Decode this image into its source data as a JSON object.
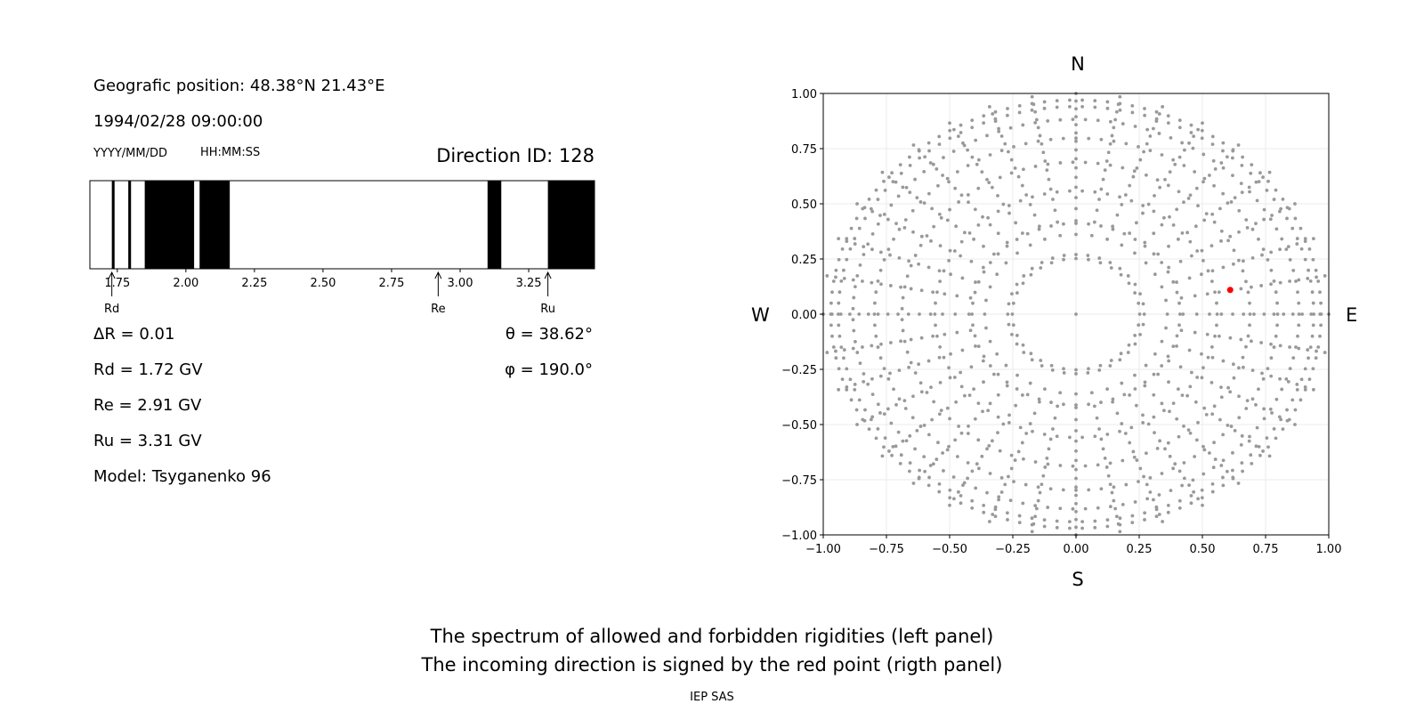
{
  "left_panel": {
    "position_label": "Geografic position: 48.38°N 21.43°E",
    "datetime": "1994/02/28 09:00:00",
    "date_format": "YYYY/MM/DD",
    "time_format": "HH:MM:SS",
    "direction_label": "Direction ID: 128",
    "delta_r": "ΔR = 0.01",
    "rd": "Rd = 1.72 GV",
    "re": "Re = 2.91 GV",
    "ru": "Ru = 3.31 GV",
    "model": "Model: Tsyganenko 96",
    "theta": "θ = 38.62°",
    "phi": "φ = 190.0°"
  },
  "right_panel": {
    "north": "N",
    "south": "S",
    "west": "W",
    "east": "E"
  },
  "captions": {
    "line1": "The spectrum of allowed and forbidden rigidities (left panel)",
    "line2": "The incoming direction is signed by the red point (rigth panel)",
    "credit": "IEP SAS"
  },
  "chart_data": [
    {
      "type": "bar",
      "name": "rigidity-spectrum",
      "xlim": [
        1.65,
        3.49
      ],
      "ticks": [
        1.75,
        2.0,
        2.25,
        2.5,
        2.75,
        3.0,
        3.25
      ],
      "tick_labels": [
        "1.75",
        "2.00",
        "2.25",
        "2.50",
        "2.75",
        "3.00",
        "3.25"
      ],
      "forbidden_bands": [
        [
          1.73,
          1.74
        ],
        [
          1.79,
          1.8
        ],
        [
          1.85,
          2.03
        ],
        [
          2.05,
          2.16
        ],
        [
          3.1,
          3.15
        ],
        [
          3.32,
          3.49
        ]
      ],
      "markers": [
        {
          "label": "Rd",
          "value": 1.73
        },
        {
          "label": "Re",
          "value": 2.92
        },
        {
          "label": "Ru",
          "value": 3.32
        }
      ],
      "band_color": "#000000"
    },
    {
      "type": "scatter",
      "name": "direction-grid",
      "xlim": [
        -1.0,
        1.0
      ],
      "ylim": [
        -1.0,
        1.0
      ],
      "ticks": [
        -1.0,
        -0.75,
        -0.5,
        -0.25,
        0.0,
        0.25,
        0.5,
        0.75,
        1.0
      ],
      "tick_labels": [
        "−1.00",
        "−0.75",
        "−0.50",
        "−0.25",
        "0.00",
        "0.25",
        "0.50",
        "0.75",
        "1.00"
      ],
      "grid": true,
      "grid_pattern": {
        "spokes": 36,
        "spoke_step_deg": 10,
        "rings_deg": [
          15,
          25,
          35,
          45,
          55,
          65,
          75,
          85
        ],
        "max_spoke_radius": 1.0
      },
      "grid_point_color": "#999999",
      "highlight": {
        "x": 0.61,
        "y": 0.11,
        "color": "#ff0000"
      }
    }
  ]
}
